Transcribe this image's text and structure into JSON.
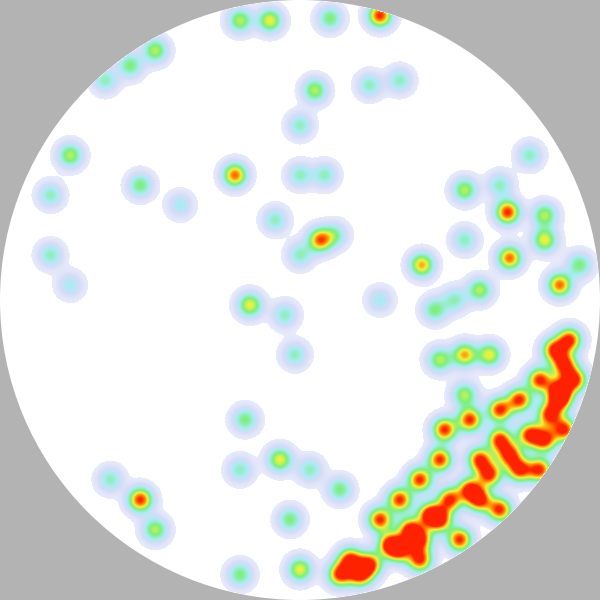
{
  "chart_data": {
    "type": "heatmap",
    "x": [
      0.267,
      -0.1,
      -0.2,
      0.1,
      -0.483,
      -0.567,
      -0.65,
      -0.767,
      -0.833,
      -0.833,
      -0.767,
      -0.217,
      -0.533,
      -0.4,
      0.05,
      0.0,
      0.233,
      0.333,
      0.067,
      0.0,
      -0.083,
      0.117,
      0.0,
      0.083,
      -0.167,
      -0.05,
      -0.017,
      0.693,
      0.7,
      0.55,
      0.817,
      0.817,
      0.667,
      0.767,
      0.55,
      0.407,
      0.6,
      0.517,
      0.45,
      0.267,
      0.867,
      0.933,
      0.55,
      0.633,
      0.467,
      0.55,
      0.483,
      -0.183,
      -0.067,
      0.033,
      0.133,
      -0.2,
      -0.033,
      -0.533,
      -0.483,
      -0.633,
      -0.2,
      0.0,
      0.133,
      0.233,
      0.3,
      0.367,
      0.433,
      0.5,
      0.567,
      0.633,
      0.7,
      0.767,
      0.833,
      0.867,
      0.883,
      0.9,
      0.867,
      0.817,
      0.733,
      0.6,
      0.467,
      0.333,
      0.2,
      0.4,
      0.533,
      0.667,
      0.8,
      0.883,
      0.917,
      0.4,
      0.333,
      0.467,
      0.567,
      0.667,
      0.733,
      0.8,
      0.85,
      0.667,
      0.6,
      0.4,
      0.267,
      0.167
    ],
    "y": [
      0.95,
      0.933,
      0.933,
      0.94,
      0.833,
      0.783,
      0.733,
      0.483,
      0.35,
      0.15,
      0.05,
      0.417,
      0.383,
      0.317,
      0.7,
      0.583,
      0.717,
      0.733,
      0.2,
      0.15,
      0.267,
      0.217,
      0.417,
      0.417,
      -0.017,
      -0.05,
      -0.183,
      0.293,
      0.14,
      0.367,
      0.283,
      0.2,
      0.383,
      0.483,
      0.2,
      0.117,
      0.033,
      0.0,
      -0.033,
      0.0,
      0.05,
      0.117,
      -0.183,
      -0.183,
      -0.2,
      -0.317,
      -0.433,
      -0.4,
      -0.533,
      -0.567,
      -0.633,
      -0.567,
      -0.733,
      -0.667,
      -0.767,
      -0.6,
      -0.917,
      -0.9,
      -0.917,
      -0.883,
      -0.817,
      -0.767,
      -0.717,
      -0.667,
      -0.633,
      -0.583,
      -0.517,
      -0.45,
      -0.383,
      -0.3,
      -0.217,
      -0.133,
      -0.333,
      -0.467,
      -0.567,
      -0.667,
      -0.733,
      -0.833,
      -0.917,
      -0.867,
      -0.8,
      -0.7,
      -0.567,
      -0.433,
      -0.267,
      -0.6,
      -0.667,
      -0.533,
      -0.4,
      -0.367,
      -0.333,
      -0.267,
      -0.167,
      -0.467,
      -0.533,
      -0.8,
      -0.733,
      -0.867
    ],
    "values": [
      1.0,
      0.7,
      0.6,
      0.5,
      0.6,
      0.5,
      0.4,
      0.6,
      0.4,
      0.4,
      0.3,
      0.9,
      0.5,
      0.3,
      0.6,
      0.4,
      0.4,
      0.4,
      0.9,
      0.4,
      0.4,
      0.4,
      0.4,
      0.4,
      0.7,
      0.4,
      0.4,
      1.0,
      0.9,
      0.6,
      0.6,
      0.7,
      0.4,
      0.4,
      0.4,
      0.8,
      0.6,
      0.4,
      0.5,
      0.3,
      0.9,
      0.5,
      0.8,
      0.7,
      0.6,
      0.6,
      1.0,
      0.5,
      0.7,
      0.4,
      0.5,
      0.4,
      0.5,
      1.0,
      0.6,
      0.4,
      0.5,
      0.7,
      1.0,
      1.0,
      1.0,
      1.0,
      1.0,
      1.0,
      1.0,
      1.0,
      1.0,
      1.0,
      1.0,
      1.0,
      1.0,
      1.0,
      1.0,
      1.0,
      1.0,
      1.0,
      1.0,
      1.0,
      1.0,
      1.0,
      1.0,
      1.0,
      1.0,
      1.0,
      1.0,
      1.0,
      1.0,
      1.0,
      1.0,
      1.0,
      1.0,
      1.0,
      1.0,
      1.0,
      1.0,
      1.0,
      1.0,
      1.0
    ],
    "xlim": [
      -1,
      1
    ],
    "ylim": [
      -1,
      1
    ],
    "color_range": [
      0,
      1
    ],
    "tick_labels": false
  }
}
